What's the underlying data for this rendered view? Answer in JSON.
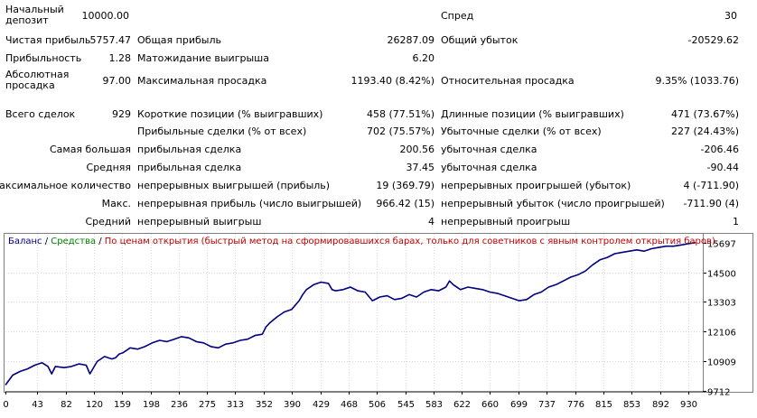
{
  "report": {
    "initial_deposit": {
      "label": "Начальный депозит",
      "value": "10000.00"
    },
    "spread": {
      "label": "Спред",
      "value": "30"
    },
    "net_profit": {
      "label": "Чистая прибыль",
      "value": "5757.47"
    },
    "gross_profit": {
      "label": "Общая прибыль",
      "value": "26287.09"
    },
    "gross_loss": {
      "label": "Общий убыток",
      "value": "-20529.62"
    },
    "profit_factor": {
      "label": "Прибыльность",
      "value": "1.28"
    },
    "expected_payoff": {
      "label": "Матожидание выигрыша",
      "value": "6.20"
    },
    "absolute_drawdown": {
      "label": "Абсолютная просадка",
      "value": "97.00"
    },
    "maximal_drawdown": {
      "label": "Максимальная просадка",
      "value": "1193.40 (8.42%)"
    },
    "relative_drawdown": {
      "label": "Относительная просадка",
      "value": "9.35% (1033.76)"
    },
    "total_trades": {
      "label": "Всего сделок",
      "value": "929"
    },
    "short_positions": {
      "label": "Короткие позиции (% выигравших)",
      "value": "458 (77.51%)"
    },
    "long_positions": {
      "label": "Длинные позиции (% выигравших)",
      "value": "471 (73.67%)"
    },
    "profit_trades": {
      "label": "Прибыльные сделки (% от всех)",
      "value": "702 (75.57%)"
    },
    "loss_trades": {
      "label": "Убыточные сделки (% от всех)",
      "value": "227 (24.43%)"
    },
    "largest": {
      "label": "Самая большая",
      "profit_label": "прибыльная сделка",
      "profit_value": "200.56",
      "loss_label": "убыточная сделка",
      "loss_value": "-206.46"
    },
    "average": {
      "label": "Средняя",
      "profit_label": "прибыльная сделка",
      "profit_value": "37.45",
      "loss_label": "убыточная сделка",
      "loss_value": "-90.44"
    },
    "max_consecutive": {
      "label": "Максимальное количество",
      "wins_label": "непрерывных выигрышей (прибыль)",
      "wins_value": "19 (369.79)",
      "losses_label": "непрерывных проигрышей (убыток)",
      "losses_value": "4 (-711.90)"
    },
    "max_consecutive_amount": {
      "label": "Макс.",
      "profit_label": "непрерывная прибыль (число выигрышей)",
      "profit_value": "966.42 (15)",
      "loss_label": "непрерывный убыток (число проигрышей)",
      "loss_value": "-711.90 (4)"
    },
    "average_consecutive": {
      "label": "Средний",
      "wins_label": "непрерывный выигрыш",
      "wins_value": "4",
      "losses_label": "непрерывный проигрыш",
      "losses_value": "1"
    }
  },
  "chart_legend": {
    "balance": "Баланс",
    "sep1": " / ",
    "equity": "Средства",
    "sep2": " / ",
    "model": "По ценам открытия (быстрый метод на сформировавшихся барах, только для советников с явным контролем открытия баров)"
  },
  "colors": {
    "balance": "#000080",
    "equity": "#008000",
    "model": "#c00000",
    "grid": "#d8d8d8",
    "frame": "#7f7f7f"
  },
  "chart_data": {
    "type": "line",
    "title": "",
    "xlabel": "",
    "ylabel": "",
    "x_ticks": [
      0,
      43,
      82,
      120,
      159,
      198,
      236,
      275,
      313,
      352,
      390,
      429,
      468,
      506,
      545,
      583,
      622,
      660,
      699,
      737,
      776,
      815,
      853,
      892,
      930
    ],
    "y_ticks": [
      9712,
      10909,
      12106,
      13303,
      14500,
      15697
    ],
    "xlim": [
      0,
      950
    ],
    "ylim": [
      9712,
      16050
    ],
    "grid": true,
    "series": [
      {
        "name": "Баланс",
        "x": [
          0,
          10,
          20,
          30,
          40,
          50,
          58,
          63,
          68,
          80,
          90,
          100,
          110,
          115,
          125,
          135,
          145,
          150,
          155,
          160,
          170,
          180,
          190,
          200,
          210,
          220,
          230,
          240,
          250,
          260,
          270,
          280,
          290,
          300,
          310,
          320,
          330,
          340,
          350,
          355,
          360,
          370,
          380,
          390,
          400,
          405,
          410,
          420,
          430,
          440,
          445,
          450,
          460,
          470,
          480,
          490,
          500,
          510,
          520,
          530,
          540,
          550,
          560,
          570,
          580,
          590,
          600,
          605,
          610,
          620,
          630,
          640,
          650,
          660,
          670,
          680,
          690,
          700,
          710,
          720,
          730,
          740,
          750,
          760,
          770,
          780,
          790,
          800,
          810,
          820,
          830,
          840,
          850,
          860,
          870,
          880,
          890,
          900,
          910,
          920,
          930,
          940
        ],
        "values": [
          9950,
          10350,
          10500,
          10600,
          10750,
          10850,
          10700,
          10400,
          10700,
          10650,
          10700,
          10800,
          10750,
          10400,
          10900,
          11100,
          11000,
          11050,
          11200,
          11250,
          11450,
          11400,
          11500,
          11650,
          11750,
          11700,
          11800,
          11900,
          11850,
          11700,
          11650,
          11500,
          11450,
          11600,
          11650,
          11750,
          11800,
          11950,
          12000,
          12300,
          12450,
          12700,
          12900,
          13000,
          13350,
          13600,
          13800,
          14000,
          14100,
          14050,
          13800,
          13750,
          13800,
          13900,
          13750,
          13700,
          13350,
          13500,
          13550,
          13400,
          13450,
          13600,
          13500,
          13700,
          13800,
          13750,
          13900,
          14150,
          14000,
          13800,
          13900,
          13850,
          13800,
          13700,
          13650,
          13550,
          13450,
          13350,
          13400,
          13600,
          13700,
          13900,
          14000,
          14150,
          14300,
          14400,
          14550,
          14800,
          15000,
          15100,
          15250,
          15300,
          15350,
          15400,
          15350,
          15450,
          15500,
          15550,
          15550,
          15600,
          15650,
          15697
        ]
      }
    ]
  }
}
